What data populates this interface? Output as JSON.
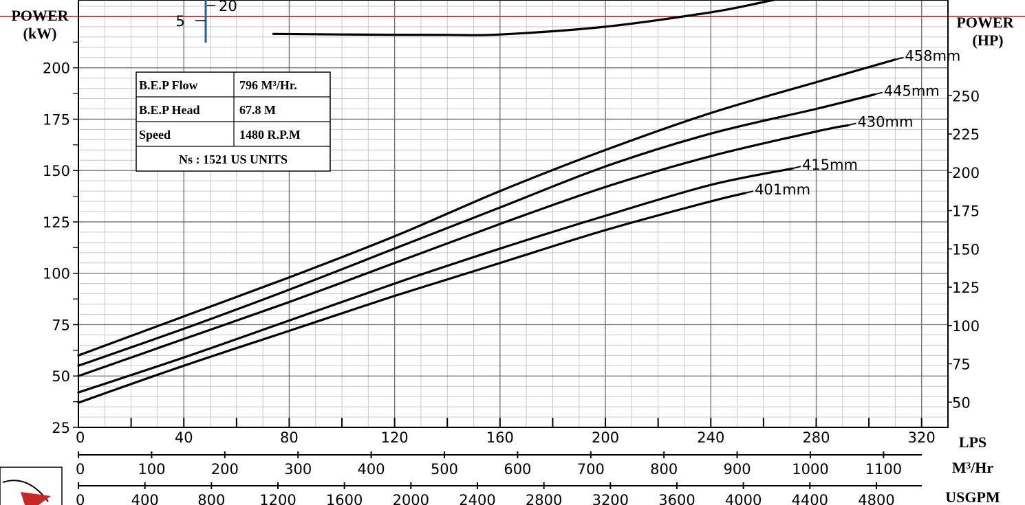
{
  "chart_data": {
    "type": "line",
    "xlabel": "LPS",
    "xlim": [
      0,
      330
    ],
    "x_ticks": [
      0,
      40,
      80,
      120,
      160,
      200,
      240,
      280,
      320
    ],
    "ylabel_left": "POWER\n(kW)",
    "ylabel_left_lines": [
      "POWER",
      "(kW)"
    ],
    "ylim": [
      25,
      230
    ],
    "y_ticks_left": [
      25,
      50,
      75,
      100,
      125,
      150,
      175,
      200
    ],
    "ylabel_right": "POWER\n(HP)",
    "ylabel_right_lines": [
      "POWER",
      "(HP)"
    ],
    "y_ticks_right": [
      50,
      75,
      100,
      125,
      150,
      175,
      200,
      225,
      250
    ],
    "secondary_axes": [
      {
        "unit": "M³/Hr",
        "ticks": [
          0,
          100,
          200,
          300,
          400,
          500,
          600,
          700,
          800,
          900,
          1000,
          1100
        ]
      },
      {
        "unit": "USGPM",
        "ticks": [
          0,
          400,
          800,
          1200,
          1600,
          2000,
          2400,
          2800,
          3200,
          3600,
          4000,
          4400,
          4800
        ]
      }
    ],
    "series": [
      {
        "name": "458mm",
        "x": [
          0,
          40,
          80,
          120,
          160,
          200,
          240,
          280,
          310
        ],
        "y": [
          60,
          79,
          98,
          118,
          140,
          160,
          178,
          193,
          204
        ]
      },
      {
        "name": "445mm",
        "x": [
          0,
          40,
          80,
          120,
          160,
          200,
          240,
          280,
          302
        ],
        "y": [
          55,
          73,
          92,
          112,
          132,
          152,
          168,
          180,
          187
        ]
      },
      {
        "name": "430mm",
        "x": [
          0,
          40,
          80,
          120,
          160,
          200,
          240,
          280,
          292
        ],
        "y": [
          50,
          68,
          86,
          105,
          124,
          142,
          157,
          169,
          172
        ]
      },
      {
        "name": "415mm",
        "x": [
          0,
          40,
          80,
          120,
          160,
          200,
          240,
          271
        ],
        "y": [
          42,
          59,
          77,
          95,
          112,
          128,
          143,
          151
        ]
      },
      {
        "name": "401mm",
        "x": [
          0,
          40,
          80,
          120,
          160,
          200,
          240,
          253
        ],
        "y": [
          37,
          55,
          72,
          89,
          105,
          121,
          135,
          139
        ]
      }
    ],
    "efficiency_top_curve": {
      "x": [
        74,
        100,
        140,
        160,
        200,
        240,
        260,
        275
      ],
      "y": [
        216.5,
        216.2,
        216,
        216.2,
        220,
        227,
        232,
        236
      ]
    },
    "reference_line_y": 225,
    "reference_line_color": "#c62828",
    "upper_scale": {
      "label_left": "5",
      "label_right": "20",
      "color": "#1f5fa8"
    },
    "bep_table": {
      "rows": [
        {
          "label": "B.E.P Flow",
          "value": "796 M³/Hr."
        },
        {
          "label": "B.E.P Head",
          "value": "67.8 M"
        },
        {
          "label": "Speed",
          "value": "1480 R.P.M"
        }
      ],
      "footer": "Ns : 1521 US UNITS"
    },
    "grid": true,
    "logo_color": "#c62828"
  }
}
